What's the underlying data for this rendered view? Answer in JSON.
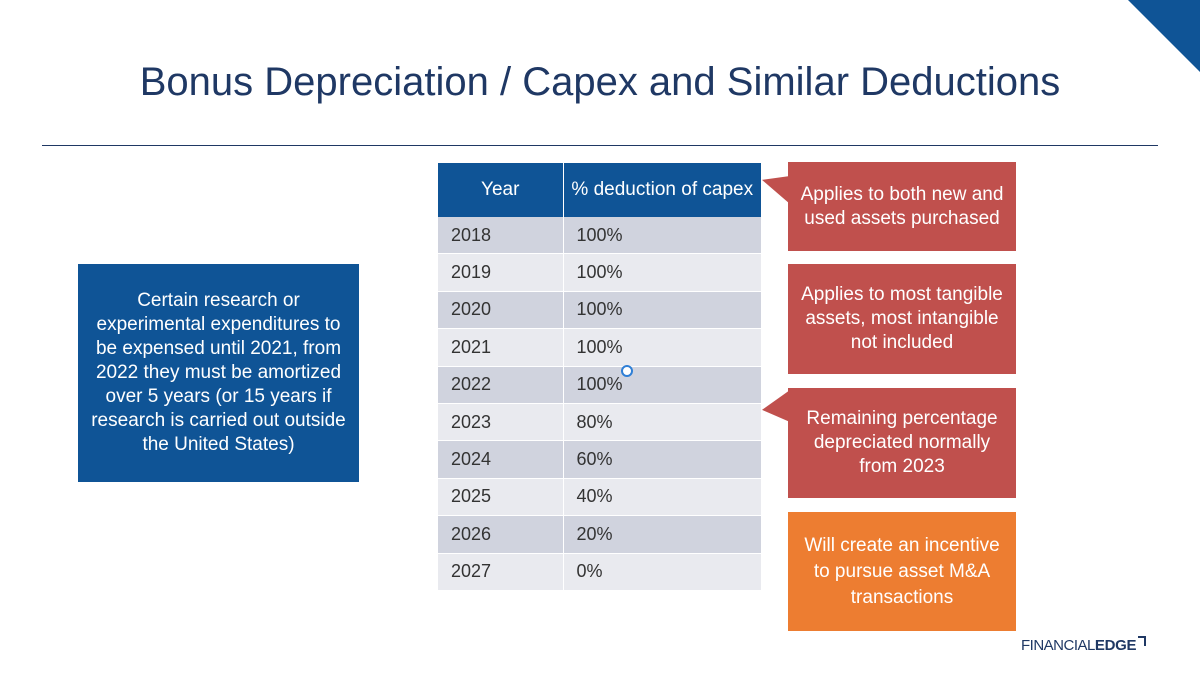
{
  "title": "Bonus Depreciation / Capex and Similar Deductions",
  "left_note": "Certain research or experimental expenditures to be expensed until 2021, from 2022 they must be amortized over 5 years (or 15 years if research is carried out outside the United States)",
  "table": {
    "headers": [
      "Year",
      "% deduction of capex"
    ],
    "rows": [
      [
        "2018",
        "100%"
      ],
      [
        "2019",
        "100%"
      ],
      [
        "2020",
        "100%"
      ],
      [
        "2021",
        "100%"
      ],
      [
        "2022",
        "100%"
      ],
      [
        "2023",
        "80%"
      ],
      [
        "2024",
        "60%"
      ],
      [
        "2025",
        "40%"
      ],
      [
        "2026",
        "20%"
      ],
      [
        "2027",
        "0%"
      ]
    ]
  },
  "callouts": {
    "c1": "Applies to both new and used assets purchased",
    "c2": "Applies to most tangible assets, most intangible not included",
    "c3": "Remaining percentage depreciated normally from 2023",
    "c4": "Will create an incentive to pursue asset M&A transactions"
  },
  "logo": {
    "part1": "FINANCIAL",
    "part2": "EDGE"
  },
  "colors": {
    "navy": "#0f5496",
    "title": "#1f3864",
    "red": "#c0504d",
    "orange": "#ed7d31",
    "row_dark": "#d0d3de",
    "row_light": "#e9eaef"
  }
}
